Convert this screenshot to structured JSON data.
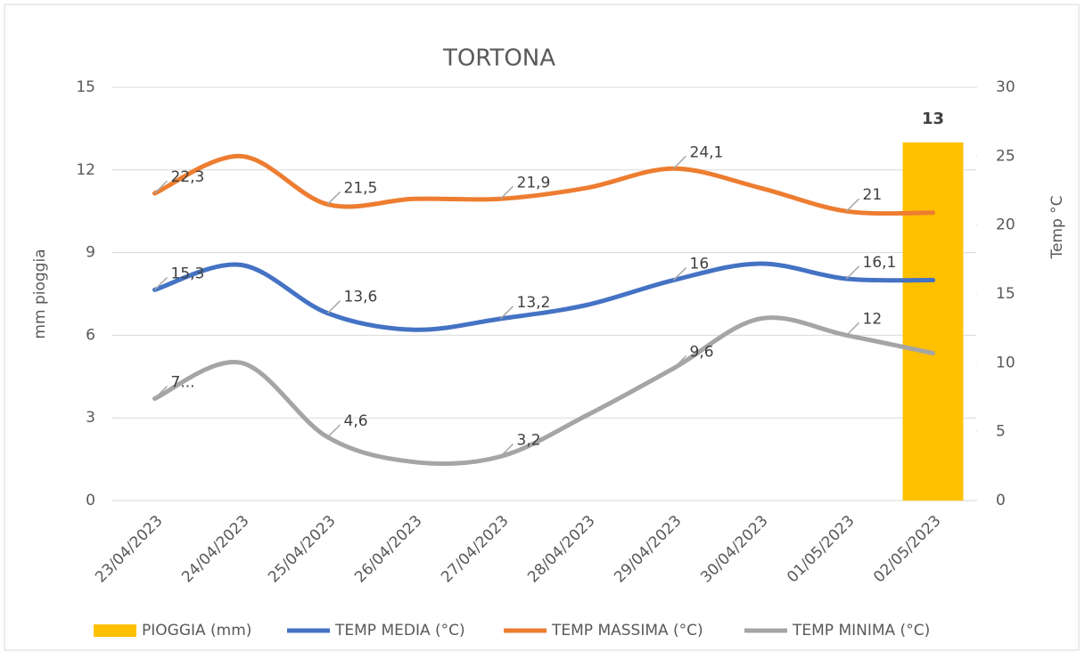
{
  "chart_data": {
    "type": "combo",
    "title": "TORTONA",
    "y_label": "mm pioggia",
    "y2_label": "Temp °C",
    "categories": [
      "23/04/2023",
      "24/04/2023",
      "25/04/2023",
      "26/04/2023",
      "27/04/2023",
      "28/04/2023",
      "29/04/2023",
      "30/04/2023",
      "01/05/2023",
      "02/05/2023"
    ],
    "ylim": [
      0,
      15
    ],
    "yticks": [
      0,
      3,
      6,
      9,
      12,
      15
    ],
    "y2lim": [
      0,
      30
    ],
    "y2ticks": [
      0,
      5,
      10,
      15,
      20,
      25,
      30
    ],
    "grid": true,
    "legend": "bottom",
    "series": [
      {
        "name": "PIOGGIA (mm)",
        "type": "bar",
        "color": "#ffc000",
        "values": [
          0,
          0,
          0,
          0,
          0,
          0,
          0,
          0,
          0,
          13
        ],
        "value_labels": [
          null,
          null,
          null,
          null,
          null,
          null,
          null,
          null,
          null,
          "13"
        ]
      },
      {
        "name": "TEMP MEDIA (°C)",
        "type": "line",
        "axis": "y2",
        "color": "#4472c4",
        "values": [
          15.3,
          17.1,
          13.6,
          12.4,
          13.2,
          14.2,
          16,
          17.2,
          16.1,
          16.0
        ],
        "value_labels": [
          "15,3",
          null,
          "13,6",
          null,
          "13,2",
          null,
          "16",
          null,
          "16,1",
          null
        ]
      },
      {
        "name": "TEMP MASSIMA (°C)",
        "type": "line",
        "axis": "y2",
        "color": "#ed7d31",
        "values": [
          22.3,
          25.0,
          21.5,
          21.9,
          21.9,
          22.7,
          24.1,
          22.7,
          21,
          20.9
        ],
        "value_labels": [
          "22,3",
          null,
          "21,5",
          null,
          "21,9",
          null,
          "24,1",
          null,
          "21",
          null
        ]
      },
      {
        "name": "TEMP MINIMA (°C)",
        "type": "line",
        "axis": "y2",
        "color": "#a5a5a5",
        "values": [
          7.4,
          10.0,
          4.6,
          2.8,
          3.2,
          6.2,
          9.6,
          13.2,
          12,
          10.7
        ],
        "value_labels": [
          "7...",
          null,
          "4,6",
          null,
          "3,2",
          null,
          "9,6",
          null,
          "12",
          null
        ]
      }
    ]
  }
}
